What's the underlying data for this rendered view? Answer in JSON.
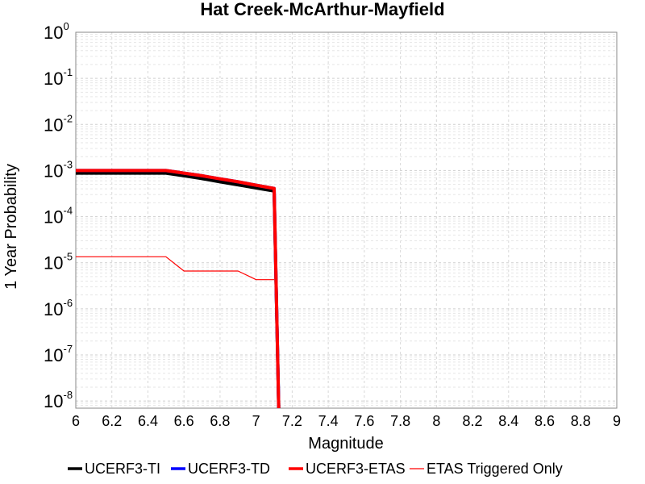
{
  "chart_data": {
    "type": "line",
    "title": "Hat Creek-McArthur-Mayfield",
    "xlabel": "Magnitude",
    "ylabel": "1 Year Probability",
    "xlim": [
      6,
      9
    ],
    "ylim": [
      7e-09,
      1
    ],
    "y_scale": "log",
    "grid": true,
    "legend_position": "bottom",
    "x_ticks": [
      "6",
      "6.2",
      "6.4",
      "6.6",
      "6.8",
      "7",
      "7.2",
      "7.4",
      "7.6",
      "7.8",
      "8",
      "8.2",
      "8.4",
      "8.6",
      "8.8",
      "9"
    ],
    "y_ticks": [
      {
        "base": "10",
        "exp": "0"
      },
      {
        "base": "10",
        "exp": "-1"
      },
      {
        "base": "10",
        "exp": "-2"
      },
      {
        "base": "10",
        "exp": "-3"
      },
      {
        "base": "10",
        "exp": "-4"
      },
      {
        "base": "10",
        "exp": "-5"
      },
      {
        "base": "10",
        "exp": "-6"
      },
      {
        "base": "10",
        "exp": "-7"
      },
      {
        "base": "10",
        "exp": "-8"
      }
    ],
    "series": [
      {
        "name": "UCERF3-TI",
        "color": "#000000",
        "x": [
          6.0,
          6.5,
          6.6,
          6.7,
          6.8,
          6.9,
          7.0,
          7.1,
          7.13
        ],
        "y": [
          0.00088,
          0.00088,
          0.00077,
          0.00067,
          0.00057,
          0.00049,
          0.00042,
          0.00036,
          1e-09
        ]
      },
      {
        "name": "UCERF3-TD",
        "color": "#0000ff",
        "x": [
          6.0,
          6.5,
          6.6,
          6.7,
          6.8,
          6.9,
          7.0,
          7.1,
          7.13
        ],
        "y": [
          0.001,
          0.001,
          0.00088,
          0.00077,
          0.00066,
          0.00057,
          0.00048,
          0.00041,
          1e-09
        ]
      },
      {
        "name": "UCERF3-ETAS",
        "color": "#ff0000",
        "x": [
          6.0,
          6.5,
          6.6,
          6.7,
          6.8,
          6.9,
          7.0,
          7.1,
          7.13
        ],
        "y": [
          0.001,
          0.001,
          0.00088,
          0.00077,
          0.00066,
          0.00057,
          0.00048,
          0.00041,
          1e-09
        ]
      },
      {
        "name": "ETAS Triggered Only",
        "color": "#ff0000",
        "x": [
          6.0,
          6.5,
          6.6,
          6.9,
          7.0,
          7.1
        ],
        "y": [
          1.35e-05,
          1.35e-05,
          6.6e-06,
          6.6e-06,
          4.3e-06,
          4.3e-06
        ]
      }
    ]
  }
}
